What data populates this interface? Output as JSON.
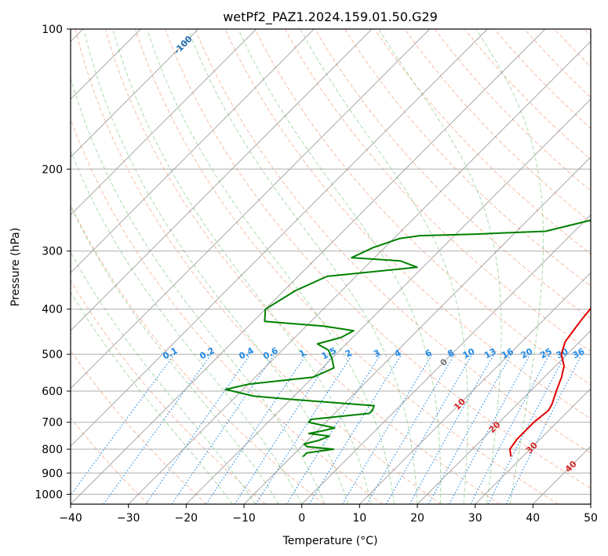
{
  "chart_data": {
    "type": "line",
    "title": "wetPf2_PAZ1.2024.159.01.50.G29",
    "xlabel": "Temperature (°C)",
    "ylabel": "Pressure (hPa)",
    "xlim": [
      -40,
      50
    ],
    "ylim": [
      1050,
      100
    ],
    "y_scale": "log",
    "grid": true,
    "x_ticks": [
      "−40",
      "−30",
      "−20",
      "−10",
      "0",
      "10",
      "20",
      "30",
      "40",
      "50"
    ],
    "y_ticks": [
      "100",
      "200",
      "300",
      "400",
      "500",
      "600",
      "700",
      "800",
      "900",
      "1000"
    ],
    "colors": {
      "temperature": "#e00000",
      "dewpoint": "#008000",
      "isotherm": "#999999",
      "dry_adiabat": "#f2a07e",
      "moist_adiabat": "#8fcf8f",
      "mixing_ratio": "#1f88e5",
      "isotherm_label_cold": "#1f6fb0",
      "isotherm_label_warm": "#d62728",
      "zero_isotherm_label": "#777777"
    },
    "isotherm_labels": [
      "-100",
      "-90",
      "-80",
      "-70",
      "-60",
      "-50",
      "-40",
      "-30",
      "-20",
      "-10",
      "0",
      "10",
      "20",
      "30",
      "40"
    ],
    "mixing_ratio_labels": [
      "0.1",
      "0.2",
      "0.4",
      "0.6",
      "1",
      "1.5",
      "2",
      "3",
      "4",
      "6",
      "8",
      "10",
      "13",
      "16",
      "20",
      "25",
      "30",
      "36"
    ],
    "series": [
      {
        "color": "#e00000",
        "points": [
          [
            28,
            830
          ],
          [
            26.5,
            800
          ],
          [
            26,
            760
          ],
          [
            26,
            700
          ],
          [
            26.5,
            660
          ],
          [
            26,
            640
          ],
          [
            24.5,
            600
          ],
          [
            23,
            560
          ],
          [
            21.5,
            530
          ],
          [
            19,
            500
          ],
          [
            17.5,
            470
          ],
          [
            17,
            445
          ],
          [
            16.5,
            420
          ],
          [
            16,
            390
          ],
          [
            15,
            360
          ],
          [
            14.5,
            340
          ],
          [
            13.8,
            320
          ],
          [
            14.2,
            305
          ],
          [
            15,
            290
          ],
          [
            13.5,
            270
          ],
          [
            12,
            255
          ],
          [
            9.5,
            235
          ],
          [
            7.5,
            215
          ],
          [
            6,
            205
          ],
          [
            6,
            195
          ],
          [
            5.5,
            185
          ],
          [
            4,
            170
          ],
          [
            2.5,
            155
          ],
          [
            2,
            140
          ],
          [
            1,
            130
          ],
          [
            0.5,
            122
          ],
          [
            1,
            115
          ],
          [
            2.5,
            108
          ],
          [
            4.5,
            100
          ]
        ]
      },
      {
        "color": "#008000",
        "points": [
          [
            -8,
            830
          ],
          [
            -8,
            815
          ],
          [
            -4,
            800
          ],
          [
            -9,
            790
          ],
          [
            -10,
            780
          ],
          [
            -8,
            765
          ],
          [
            -7,
            750
          ],
          [
            -11,
            740
          ],
          [
            -9,
            730
          ],
          [
            -7.5,
            720
          ],
          [
            -13,
            700
          ],
          [
            -13,
            690
          ],
          [
            -4,
            670
          ],
          [
            -4,
            660
          ],
          [
            -4.5,
            645
          ],
          [
            -20,
            625
          ],
          [
            -27,
            615
          ],
          [
            -33,
            595
          ],
          [
            -30,
            580
          ],
          [
            -20,
            560
          ],
          [
            -18,
            535
          ],
          [
            -20,
            510
          ],
          [
            -22,
            490
          ],
          [
            -25,
            475
          ],
          [
            -22,
            460
          ],
          [
            -21,
            445
          ],
          [
            -27,
            435
          ],
          [
            -38,
            425
          ],
          [
            -40,
            400
          ],
          [
            -38,
            365
          ],
          [
            -35,
            340
          ],
          [
            -21,
            325
          ],
          [
            -25,
            315
          ],
          [
            -34,
            310
          ],
          [
            -32,
            295
          ],
          [
            -29,
            282
          ],
          [
            -26,
            278
          ],
          [
            -17,
            276
          ],
          [
            -5,
            272
          ],
          [
            2,
            255
          ],
          [
            3,
            225
          ],
          [
            1,
            210
          ],
          [
            -1,
            200
          ],
          [
            -1,
            190
          ],
          [
            1,
            180
          ],
          [
            2,
            170
          ],
          [
            -1,
            160
          ],
          [
            -3,
            145
          ],
          [
            -1,
            130
          ],
          [
            -1,
            120
          ],
          [
            -2,
            115
          ],
          [
            -1,
            110
          ],
          [
            1,
            105
          ],
          [
            0.5,
            100
          ]
        ]
      }
    ]
  }
}
